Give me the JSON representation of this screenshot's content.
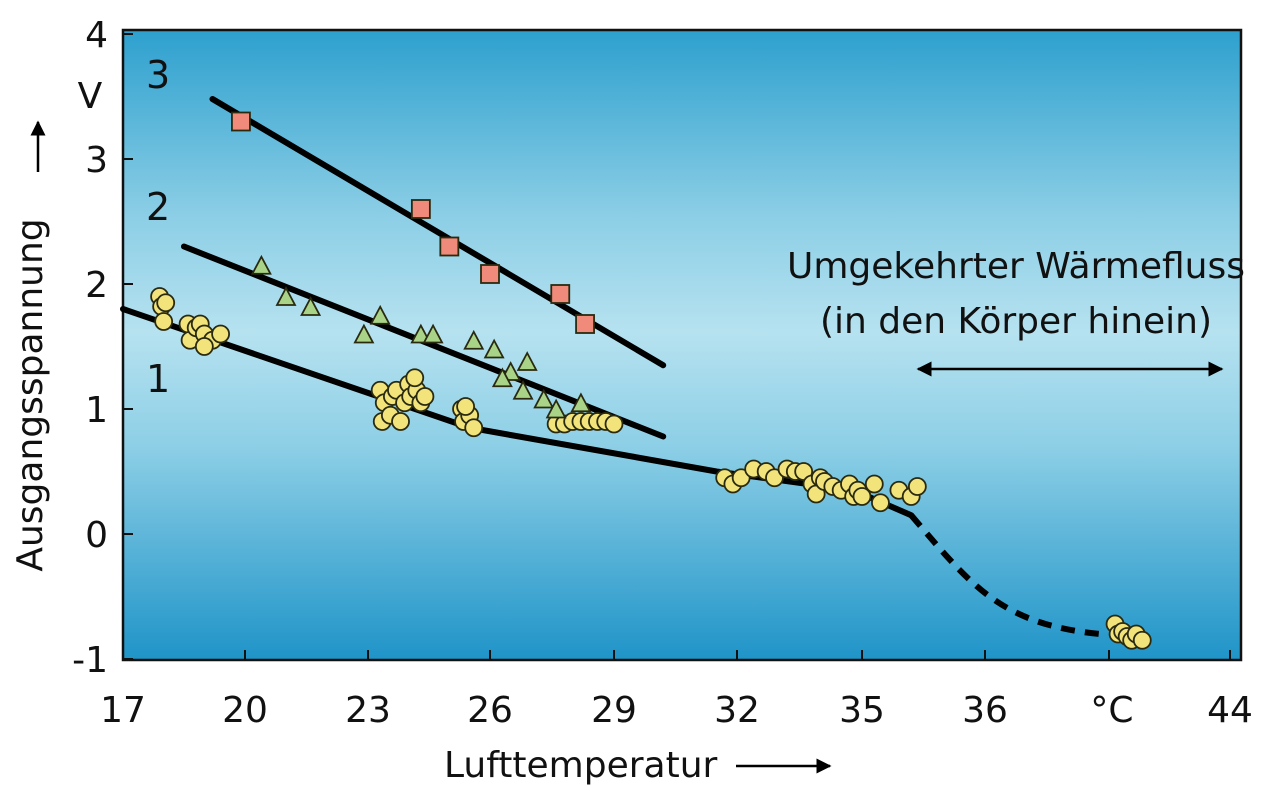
{
  "chart_data": {
    "type": "scatter",
    "xlabel": "Lufttemperatur",
    "ylabel": "Ausgangsspannung",
    "y_unit": "V",
    "x_unit": "°C",
    "x_tick_labels": [
      "17",
      "20",
      "23",
      "26",
      "29",
      "32",
      "35",
      "36",
      "",
      "44"
    ],
    "y_ticks": [
      -1,
      0,
      1,
      2,
      3,
      4
    ],
    "ylim": [
      -1,
      4
    ],
    "grid": false,
    "annotation": {
      "line1": "Umgekehrter Wärmefluss",
      "line2": "(in den Körper hinein)"
    },
    "series": [
      {
        "name": "1",
        "marker": "circle",
        "color": "#f2e37a",
        "points": [
          [
            17.9,
            1.9
          ],
          [
            17.95,
            1.82
          ],
          [
            18.0,
            1.7
          ],
          [
            18.05,
            1.85
          ],
          [
            18.6,
            1.68
          ],
          [
            18.65,
            1.55
          ],
          [
            18.8,
            1.65
          ],
          [
            18.9,
            1.68
          ],
          [
            19.0,
            1.6
          ],
          [
            19.2,
            1.55
          ],
          [
            19.4,
            1.6
          ],
          [
            19.0,
            1.5
          ],
          [
            23.3,
            1.15
          ],
          [
            23.4,
            1.05
          ],
          [
            23.35,
            0.9
          ],
          [
            23.6,
            1.1
          ],
          [
            23.55,
            0.95
          ],
          [
            23.7,
            1.15
          ],
          [
            23.8,
            0.9
          ],
          [
            23.9,
            1.05
          ],
          [
            24.0,
            1.2
          ],
          [
            24.05,
            1.1
          ],
          [
            24.2,
            1.15
          ],
          [
            24.3,
            1.05
          ],
          [
            24.4,
            1.1
          ],
          [
            24.15,
            1.25
          ],
          [
            25.3,
            1.0
          ],
          [
            25.35,
            0.9
          ],
          [
            25.5,
            0.95
          ],
          [
            25.6,
            0.85
          ],
          [
            25.4,
            1.02
          ],
          [
            27.6,
            0.88
          ],
          [
            27.8,
            0.88
          ],
          [
            28.0,
            0.9
          ],
          [
            28.2,
            0.9
          ],
          [
            28.4,
            0.9
          ],
          [
            28.6,
            0.9
          ],
          [
            28.8,
            0.9
          ],
          [
            29.0,
            0.88
          ],
          [
            31.7,
            0.45
          ],
          [
            31.9,
            0.4
          ],
          [
            32.1,
            0.45
          ],
          [
            32.4,
            0.52
          ],
          [
            32.7,
            0.5
          ],
          [
            32.9,
            0.45
          ],
          [
            33.2,
            0.52
          ],
          [
            33.4,
            0.5
          ],
          [
            33.6,
            0.5
          ],
          [
            33.8,
            0.4
          ],
          [
            33.9,
            0.32
          ],
          [
            34.0,
            0.45
          ],
          [
            34.1,
            0.42
          ],
          [
            34.3,
            0.38
          ],
          [
            34.5,
            0.35
          ],
          [
            34.7,
            0.4
          ],
          [
            34.8,
            0.3
          ],
          [
            34.9,
            0.35
          ],
          [
            35.0,
            0.3
          ],
          [
            35.1,
            0.4
          ],
          [
            35.15,
            0.25
          ],
          [
            35.3,
            0.35
          ],
          [
            35.4,
            0.3
          ],
          [
            35.45,
            0.38
          ],
          [
            40.2,
            -0.72
          ],
          [
            40.3,
            -0.8
          ],
          [
            40.45,
            -0.78
          ],
          [
            40.6,
            -0.82
          ],
          [
            40.75,
            -0.85
          ],
          [
            40.9,
            -0.8
          ],
          [
            41.1,
            -0.85
          ]
        ]
      },
      {
        "name": "2",
        "marker": "triangle",
        "color": "#a9d487",
        "points": [
          [
            20.4,
            2.15
          ],
          [
            21.0,
            1.9
          ],
          [
            21.6,
            1.82
          ],
          [
            23.3,
            1.75
          ],
          [
            22.9,
            1.6
          ],
          [
            24.3,
            1.6
          ],
          [
            24.6,
            1.6
          ],
          [
            25.6,
            1.55
          ],
          [
            26.1,
            1.48
          ],
          [
            26.5,
            1.3
          ],
          [
            26.9,
            1.38
          ],
          [
            26.3,
            1.25
          ],
          [
            26.8,
            1.15
          ],
          [
            27.3,
            1.08
          ],
          [
            27.6,
            1.0
          ],
          [
            28.2,
            1.05
          ]
        ]
      },
      {
        "name": "3",
        "marker": "square",
        "color": "#f08a7a",
        "points": [
          [
            19.9,
            3.3
          ],
          [
            24.3,
            2.6
          ],
          [
            25.0,
            2.3
          ],
          [
            26.0,
            2.08
          ],
          [
            27.7,
            1.92
          ],
          [
            28.3,
            1.68
          ]
        ]
      }
    ],
    "fit_lines": [
      {
        "series": "1",
        "from": [
          17.0,
          1.8
        ],
        "to": [
          35.4,
          0.15
        ],
        "through": [
          [
            25.5,
            0.85
          ],
          [
            31.5,
            0.5
          ],
          [
            34.8,
            0.35
          ]
        ]
      },
      {
        "series": "1",
        "dashed": true,
        "from": [
          35.4,
          0.15
        ],
        "to": [
          39.7,
          -0.8
        ]
      },
      {
        "series": "2",
        "from": [
          18.5,
          2.3
        ],
        "to": [
          30.2,
          0.78
        ]
      },
      {
        "series": "3",
        "from": [
          19.2,
          3.48
        ],
        "to": [
          30.2,
          1.35
        ]
      }
    ]
  }
}
